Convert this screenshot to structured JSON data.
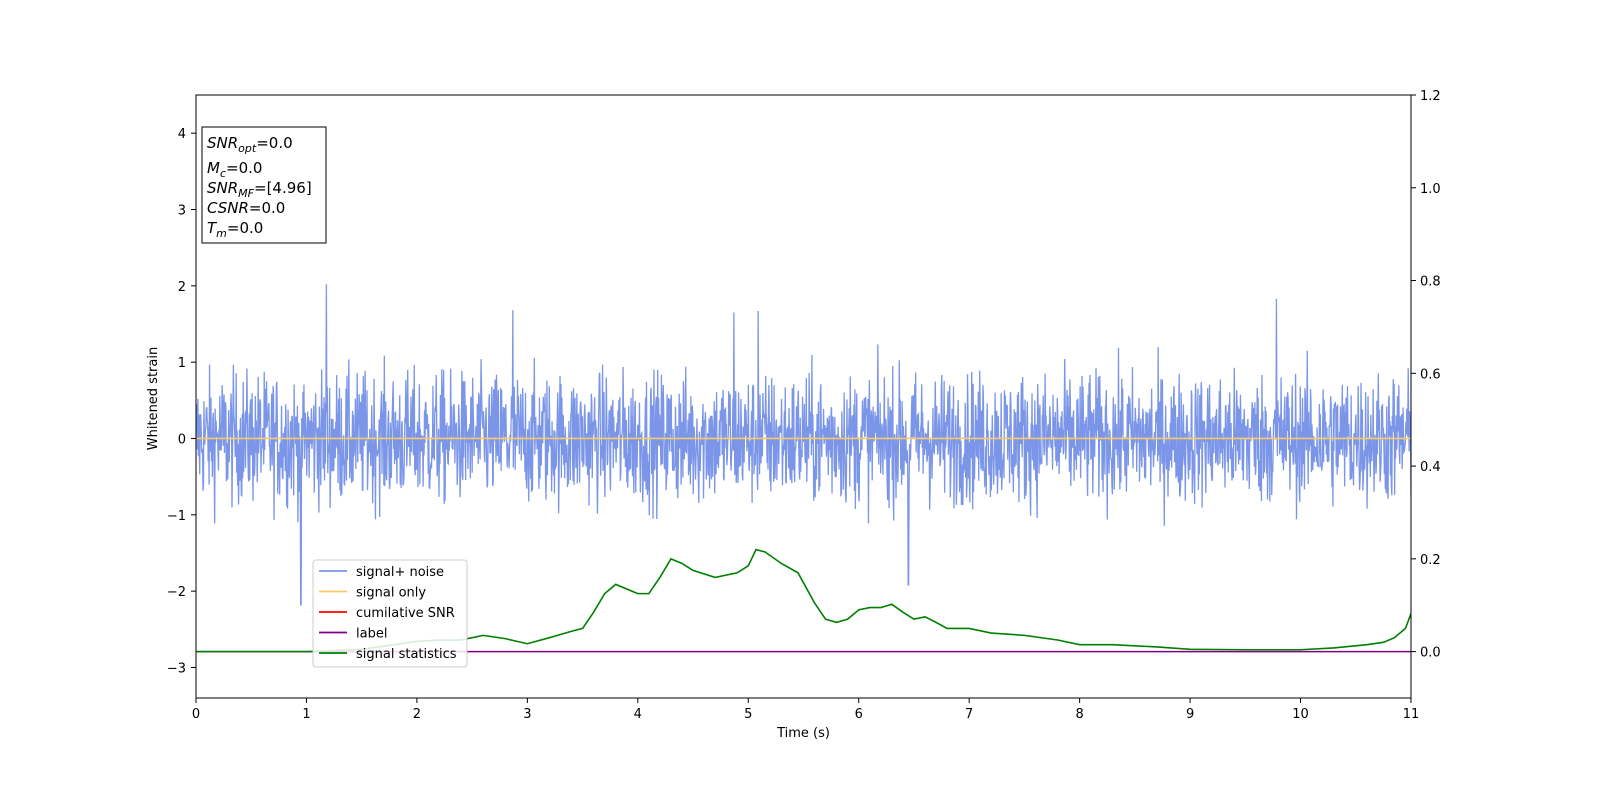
{
  "chart_data": {
    "type": "line",
    "xlabel": "Time (s)",
    "ylabel": "Whitened strain",
    "xlim": [
      0,
      11
    ],
    "ylim_left": [
      -3.4,
      4.5
    ],
    "ylim_right": [
      -0.1,
      1.2
    ],
    "x_ticks": [
      0,
      1,
      2,
      3,
      4,
      5,
      6,
      7,
      8,
      9,
      10,
      11
    ],
    "x_tick_labels": [
      "0",
      "1",
      "2",
      "3",
      "4",
      "5",
      "6",
      "7",
      "8",
      "9",
      "10",
      "11"
    ],
    "y_left_ticks": [
      -3,
      -2,
      -1,
      0,
      1,
      2,
      3,
      4
    ],
    "y_left_tick_labels": [
      "−3",
      "−2",
      "−1",
      "0",
      "1",
      "2",
      "3",
      "4"
    ],
    "y_right_ticks": [
      0.0,
      0.2,
      0.4,
      0.6,
      0.8,
      1.0,
      1.2
    ],
    "y_right_tick_labels": [
      "0.0",
      "0.2",
      "0.4",
      "0.6",
      "0.8",
      "1.0",
      "1.2"
    ],
    "legend_position": "lower-left",
    "grid": false,
    "series": [
      {
        "name": "signal+ noise",
        "color": "#7b96e8",
        "axis": "left",
        "kind": "noise",
        "approx_envelope": [
          -1.2,
          1.2
        ],
        "notable_peaks": [
          [
            1.18,
            2.02
          ],
          [
            0.95,
            -2.18
          ],
          [
            9.78,
            1.83
          ],
          [
            6.45,
            -1.92
          ],
          [
            4.87,
            1.65
          ],
          [
            5.09,
            1.67
          ],
          [
            2.87,
            1.68
          ]
        ]
      },
      {
        "name": "signal only",
        "color": "#ffc966",
        "axis": "left",
        "x": [
          0,
          11
        ],
        "y": [
          0,
          0
        ]
      },
      {
        "name": "cumilative SNR",
        "color": "#ff0000",
        "axis": "right",
        "x": [],
        "y": []
      },
      {
        "name": "label",
        "color": "#800080",
        "axis": "right",
        "x": [
          0,
          11
        ],
        "y": [
          0,
          0
        ]
      },
      {
        "name": "signal statistics",
        "color": "#008000",
        "axis": "right",
        "x": [
          0,
          0.5,
          1.0,
          1.5,
          2.0,
          2.2,
          2.4,
          2.6,
          2.8,
          3.0,
          3.2,
          3.4,
          3.5,
          3.6,
          3.7,
          3.8,
          3.9,
          4.0,
          4.1,
          4.2,
          4.3,
          4.4,
          4.5,
          4.7,
          4.9,
          5.0,
          5.07,
          5.15,
          5.3,
          5.45,
          5.6,
          5.7,
          5.8,
          5.9,
          6.0,
          6.1,
          6.2,
          6.3,
          6.4,
          6.5,
          6.6,
          6.7,
          6.8,
          7.0,
          7.2,
          7.5,
          7.8,
          8.0,
          8.3,
          8.7,
          9.0,
          9.5,
          10.0,
          10.3,
          10.6,
          10.75,
          10.85,
          10.95,
          11.0
        ],
        "y": [
          0.0,
          0.0,
          0.0,
          0.005,
          0.022,
          0.025,
          0.025,
          0.035,
          0.028,
          0.017,
          0.03,
          0.044,
          0.05,
          0.085,
          0.125,
          0.145,
          0.135,
          0.125,
          0.125,
          0.16,
          0.2,
          0.19,
          0.175,
          0.16,
          0.17,
          0.185,
          0.22,
          0.215,
          0.19,
          0.17,
          0.105,
          0.07,
          0.063,
          0.07,
          0.09,
          0.095,
          0.095,
          0.102,
          0.085,
          0.07,
          0.075,
          0.063,
          0.05,
          0.05,
          0.04,
          0.035,
          0.025,
          0.015,
          0.015,
          0.01,
          0.005,
          0.004,
          0.004,
          0.008,
          0.015,
          0.02,
          0.03,
          0.05,
          0.082
        ]
      }
    ],
    "info_box": {
      "snr_opt": {
        "main": "SNR",
        "sub": "opt",
        "value": "=0.0"
      },
      "mc": {
        "main": "M",
        "sub": "c",
        "value": "=0.0"
      },
      "snr_mf": {
        "main": "SNR",
        "sub": "MF",
        "value": "=[4.96]"
      },
      "csnr": {
        "main": "CSNR",
        "sub": "",
        "value": "=0.0"
      },
      "tm": {
        "main": "T",
        "sub": "m",
        "value": "=0.0"
      }
    }
  }
}
